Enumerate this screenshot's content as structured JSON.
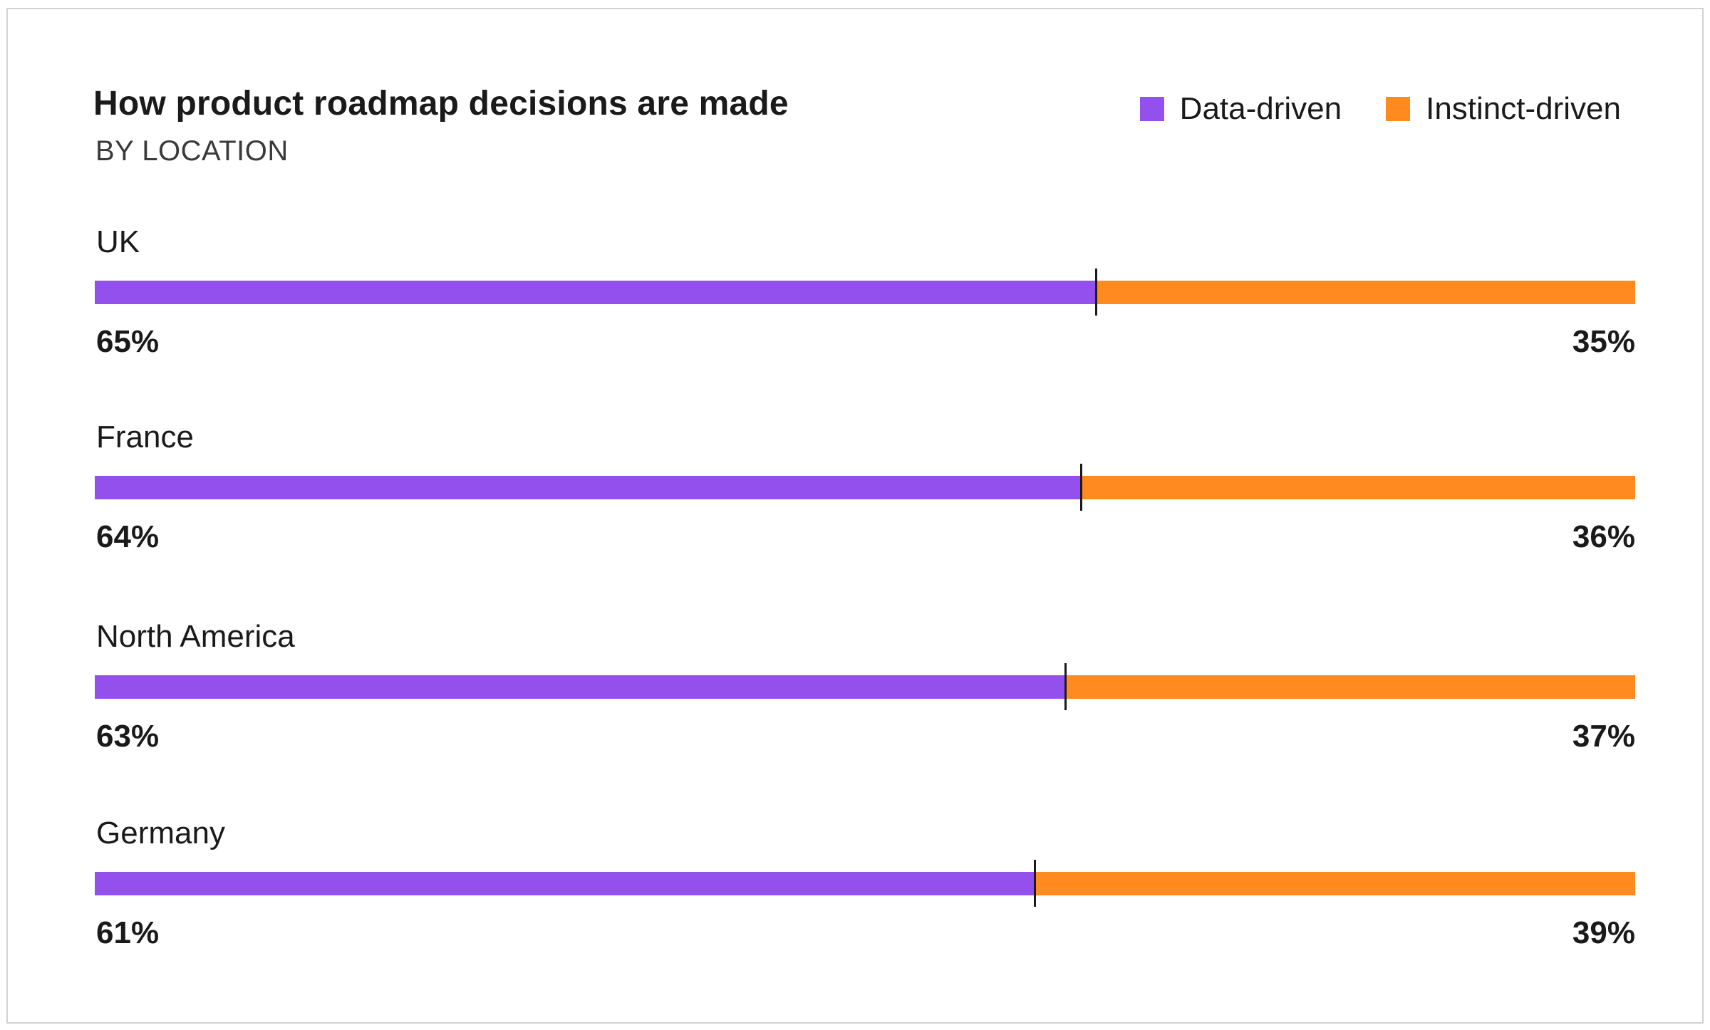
{
  "chart_data": {
    "type": "bar",
    "orientation": "horizontal",
    "stacked": true,
    "title": "How product roadmap decisions are made",
    "subtitle": "BY LOCATION",
    "categories": [
      "UK",
      "France",
      "North America",
      "Germany"
    ],
    "series": [
      {
        "name": "Data-driven",
        "color": "#9450ec",
        "values": [
          65,
          64,
          63,
          61
        ],
        "labels": [
          "65%",
          "64%",
          "63%",
          "61%"
        ]
      },
      {
        "name": "Instinct-driven",
        "color": "#ff8a1f",
        "values": [
          35,
          36,
          37,
          39
        ],
        "labels": [
          "35%",
          "36%",
          "37%",
          "39%"
        ]
      }
    ],
    "xlim": [
      0,
      100
    ],
    "legend_position": "top-right",
    "grid": false
  }
}
